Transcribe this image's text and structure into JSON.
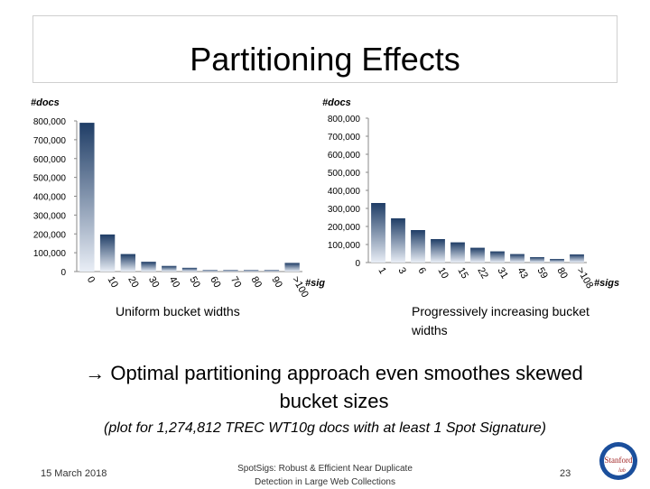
{
  "slide": {
    "title": "Partitioning Effects",
    "left_ylabel": "#docs",
    "right_ylabel": "#docs",
    "left_caption": "Uniform bucket widths",
    "right_caption": "Progressively increasing bucket widths",
    "bullet": "→ Optimal partitioning approach even smoothes skewed bucket sizes",
    "note": "(plot for 1,274,812 TREC WT10g docs with at least 1 Spot Signature)",
    "footer_date": "15 March 2018",
    "footer_center": "SpotSigs: Robust & Efficient Near Duplicate Detection in Large Web Collections",
    "page_number": "23",
    "logo_text": "Stanford",
    "logo_sub": "lab"
  },
  "colors": {
    "bar_top": "#1f3d66",
    "bar_bottom": "#e9eef6",
    "axis": "#888888"
  },
  "chart_data": [
    {
      "type": "bar",
      "title": "Uniform bucket widths",
      "xlabel": "#sigs",
      "ylabel": "#docs",
      "ylim": [
        0,
        800000
      ],
      "yticks": [
        "0",
        "100,000",
        "200,000",
        "300,000",
        "400,000",
        "500,000",
        "600,000",
        "700,000",
        "800,000"
      ],
      "categories": [
        "0",
        "10",
        "20",
        "30",
        "40",
        "50",
        "60",
        "70",
        "80",
        "90",
        ">100"
      ],
      "values": [
        790000,
        197000,
        93000,
        52000,
        30000,
        20000,
        8000,
        8000,
        8000,
        8000,
        46000
      ],
      "grid": false
    },
    {
      "type": "bar",
      "title": "Progressively increasing bucket widths",
      "xlabel": "#sigs",
      "ylabel": "#docs",
      "ylim": [
        0,
        800000
      ],
      "yticks": [
        "0",
        "100,000",
        "200,000",
        "300,000",
        "400,000",
        "500,000",
        "600,000",
        "700,000",
        "800,000"
      ],
      "categories": [
        "1",
        "3",
        "6",
        "10",
        "15",
        "22",
        "31",
        "43",
        "59",
        "80",
        ">108"
      ],
      "values": [
        330000,
        245000,
        180000,
        130000,
        112000,
        82000,
        62000,
        47000,
        30000,
        20000,
        45000
      ],
      "grid": false
    }
  ]
}
